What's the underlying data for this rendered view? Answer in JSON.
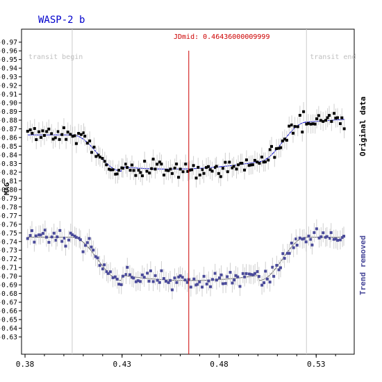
{
  "chart_data": {
    "type": "scatter",
    "title": "WASP-2 b",
    "ylabel": "MAG",
    "xlabel": "",
    "xlim": [
      0.3782,
      0.5496
    ],
    "ylim": [
      -0.61,
      -0.985
    ],
    "y_inverted": true,
    "xticks": [
      0.38,
      0.43,
      0.48,
      0.53
    ],
    "xtick_labels": [
      "0.38",
      "0.43",
      "0.48",
      "0.53"
    ],
    "yticks": [
      -0.97,
      -0.96,
      -0.95,
      -0.94,
      -0.93,
      -0.92,
      -0.91,
      -0.9,
      -0.89,
      -0.88,
      -0.87,
      -0.86,
      -0.85,
      -0.84,
      -0.83,
      -0.82,
      -0.81,
      -0.8,
      -0.79,
      -0.78,
      -0.77,
      -0.76,
      -0.75,
      -0.74,
      -0.73,
      -0.72,
      -0.71,
      -0.7,
      -0.69,
      -0.68,
      -0.67,
      -0.66,
      -0.65,
      -0.64,
      -0.63
    ],
    "ytick_labels": [
      "-0.97",
      "-0.96",
      "-0.95",
      "-0.94",
      "-0.93",
      "-0.92",
      "-0.91",
      "-0.90",
      "-0.89",
      "-0.88",
      "-0.87",
      "-0.86",
      "-0.85",
      "-0.84",
      "-0.83",
      "-0.82",
      "-0.81",
      "-0.80",
      "-0.79",
      "-0.78",
      "-0.77",
      "-0.76",
      "-0.75",
      "-0.74",
      "-0.73",
      "-0.72",
      "-0.71",
      "-0.70",
      "-0.69",
      "-0.68",
      "-0.67",
      "-0.66",
      "-0.65",
      "-0.64",
      "-0.63"
    ],
    "jdmid": 0.46436,
    "jdmid_label": "JDmid: 0.46436000009999",
    "transit_begin": 0.4043,
    "transit_end": 0.525,
    "transit_begin_label": "transit begin",
    "transit_end_label": "transit end",
    "series": [
      {
        "name": "Original data",
        "color": "#000000",
        "model_color": "#0000cc",
        "model": {
          "baseline": -0.863,
          "depth": 0.042,
          "ingress": 0.0258,
          "egress": 0.0246,
          "asym": 0.018
        },
        "error": 0.011,
        "seed": 11
      },
      {
        "name": "Trend removed",
        "color": "#4a4a9a",
        "model_color": "#666666",
        "model": {
          "baseline": -0.745,
          "depth": 0.05,
          "ingress": 0.0258,
          "egress": 0.0246,
          "asym": 0.0
        },
        "error": 0.011,
        "seed": 23
      }
    ]
  },
  "labels": {
    "title": "WASP-2 b",
    "ylabel": "MAG",
    "jdmid": "JDmid: 0.46436000009999",
    "transit_begin": "transit begin",
    "transit_end": "transit end",
    "side_top": "Original data",
    "side_bottom": "Trend removed"
  }
}
